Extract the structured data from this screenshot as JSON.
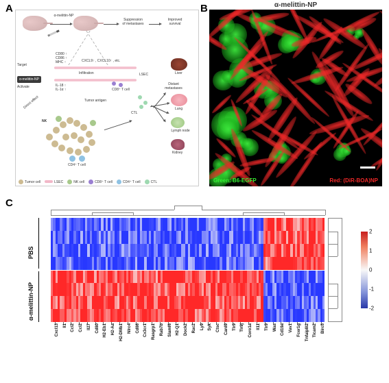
{
  "panelA": {
    "label": "A",
    "drugLabel": "α-melittin-NP",
    "topFlow": [
      "Suppression\nof metastases",
      "Improved\nsurvival"
    ],
    "targetBlock": "α-melittin-NP",
    "sideWords": [
      "Target",
      "Activate",
      "Direct effect"
    ],
    "upregMarkers": "CD80 ↑\nCD86 ↑\nMHC ↑",
    "chemokines": "CXCL9↑ , CXCL10↑ , etc.",
    "cytokines": "IL-18 ↑\nIL-1α ↑",
    "midLabels": [
      "Infiltration",
      "LSEC",
      "Tumor antigen",
      "CD8⁺ T cell",
      "CTL"
    ],
    "distant": "Distant\nmetastases",
    "organs": [
      "Liver",
      "Lung",
      "Lymph node",
      "Kidney"
    ],
    "centerCells": [
      "NK",
      "CD4⁺ T cell"
    ],
    "legend": [
      {
        "label": "Tumor cell",
        "color": "#cdbb92"
      },
      {
        "label": "LSEC",
        "color": "#f2b8c8"
      },
      {
        "label": "NK cell",
        "color": "#a8c98c"
      },
      {
        "label": "CD8⁺ T cell",
        "color": "#9a7fd1"
      },
      {
        "label": "CD4⁺ T cell",
        "color": "#8fc2e3"
      },
      {
        "label": "CTL",
        "color": "#9fd9b1"
      }
    ]
  },
  "panelB": {
    "label": "B",
    "title": "α-melittin-NP",
    "greenLabel": "Green: B6-EGFP",
    "redLabel": "Red: (DiR-BOA)NP",
    "colors": {
      "green": "#33ee33",
      "red": "#ef2828",
      "background": "#000000"
    }
  },
  "panelC": {
    "label": "C",
    "groups": [
      "PBS",
      "α-melittin-NP"
    ],
    "colorbar": {
      "min": -2,
      "max": 2,
      "step": 1,
      "top_color": "#c81e1e",
      "mid_color": "#f8f8f8",
      "bot_color": "#2838a8"
    },
    "genes": [
      "Cxcl13",
      "Il1",
      "Ccl2",
      "Ccl2",
      "Il27",
      "Cd80",
      "H2-Eb1",
      "H2-Aa",
      "H2-DMb1",
      "Nlrc4",
      "Cd86",
      "Cx3cr1",
      "Rasgrp1",
      "Rab7b",
      "Slamf6",
      "H2-Q1",
      "Dock2",
      "Rac2",
      "Ly9",
      "Syk",
      "Ctsc",
      "Card9",
      "Tlr9",
      "Tlr9j",
      "Coro1a",
      "Il11",
      "Tlr9",
      "Was",
      "Cd19a",
      "Vav1",
      "Fcer1g",
      "Tnfaip8l2",
      "Ticam2",
      "Birc5"
    ],
    "heatmap": {
      "type": "heatmap",
      "n_cols": 120,
      "rows_group1": 4,
      "rows_group2": 4,
      "group1_mean": -0.85,
      "group2_mean": 0.85,
      "right_block_flip_start": 0.78,
      "noise": 0.55
    }
  }
}
